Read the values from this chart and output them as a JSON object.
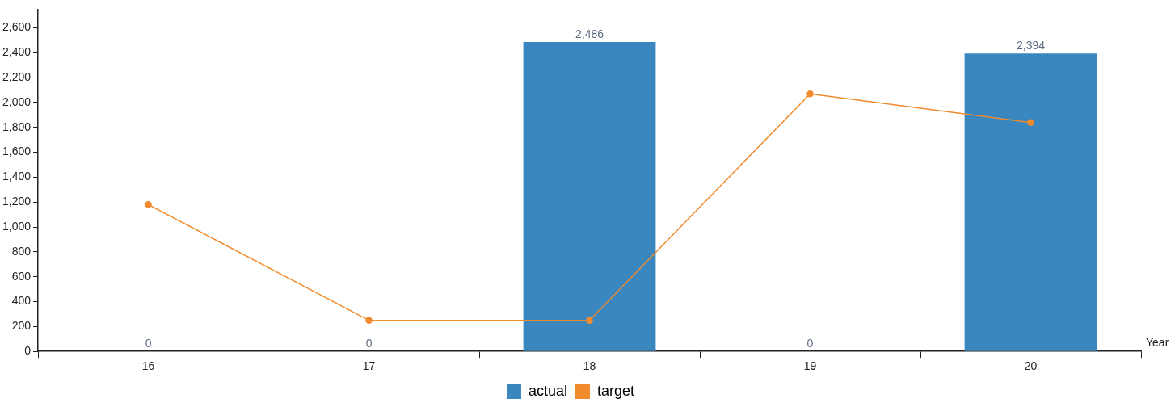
{
  "chart_data": {
    "type": "bar",
    "xlabel": "Year",
    "categories": [
      "16",
      "17",
      "18",
      "19",
      "20"
    ],
    "series": [
      {
        "name": "actual",
        "color": "#3a87c0",
        "values": [
          0,
          0,
          2486,
          0,
          2394
        ],
        "value_labels": [
          "0",
          "0",
          "2,486",
          "0",
          "2,394"
        ]
      },
      {
        "name": "target",
        "type": "line",
        "color": "#f08a2c",
        "values": [
          1180,
          250,
          250,
          2070,
          1840
        ]
      }
    ],
    "ylim": [
      0,
      2750
    ],
    "yticks": [
      0,
      200,
      400,
      600,
      800,
      {
        "value": 1000,
        "label": "1,000"
      },
      {
        "value": 1200,
        "label": "1,200"
      },
      {
        "value": 1400,
        "label": "1,400"
      },
      {
        "value": 1600,
        "label": "1,600"
      },
      {
        "value": 1800,
        "label": "1,800"
      },
      {
        "value": 2000,
        "label": "2,000"
      },
      {
        "value": 2200,
        "label": "2,200"
      },
      {
        "value": 2400,
        "label": "2,400"
      },
      {
        "value": 2600,
        "label": "2,600"
      }
    ],
    "grid": false,
    "legend": "bottom",
    "marker": "circle",
    "line_style": "solid"
  }
}
